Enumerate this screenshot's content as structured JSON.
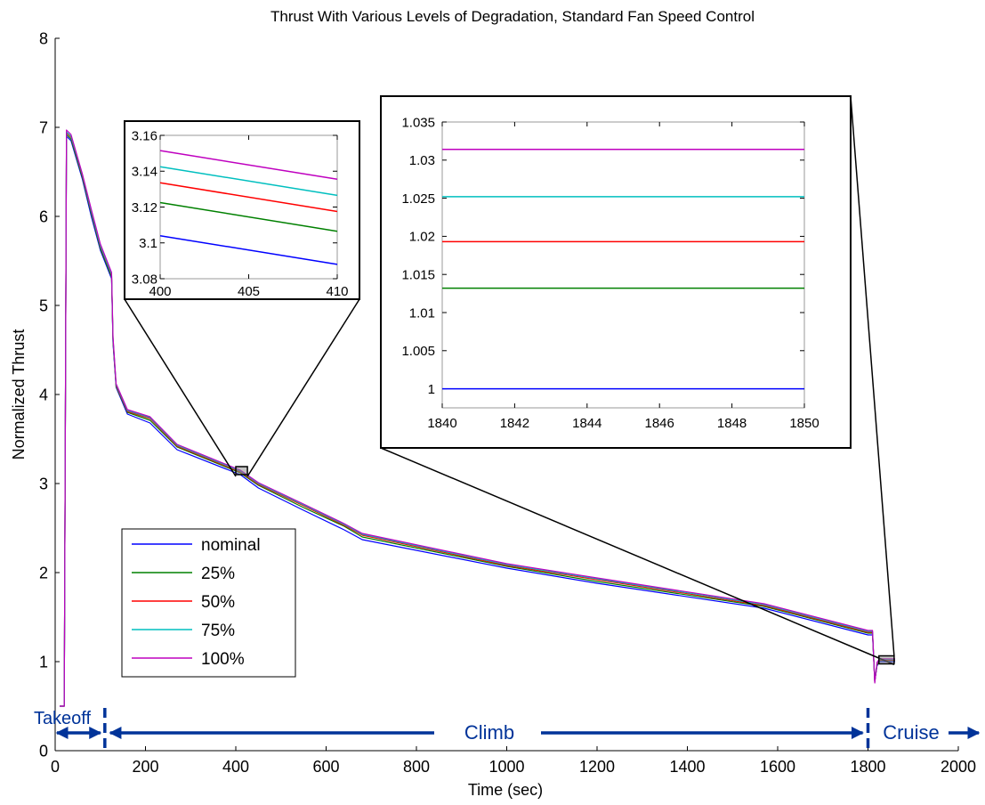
{
  "colors": {
    "nominal": "#0000ff",
    "25%": "#008000",
    "50%": "#ff0000",
    "75%": "#00bfbf",
    "100%": "#bf00bf",
    "phase": "#003399",
    "axis": "#000000"
  },
  "chart_data": [
    {
      "type": "line",
      "title": "Thrust With Various Levels of Degradation, Standard Fan Speed Control",
      "xlabel": "Time (sec)",
      "ylabel": "Normalized Thrust",
      "xlim": [
        0,
        2000
      ],
      "ylim": [
        0,
        8
      ],
      "xticks": [
        "0",
        "200",
        "400",
        "600",
        "800",
        "1000",
        "1200",
        "1400",
        "1600",
        "1800",
        "2000"
      ],
      "yticks": [
        "0",
        "1",
        "2",
        "3",
        "4",
        "5",
        "6",
        "7",
        "8"
      ],
      "legend_position": "lower-left",
      "grid": false,
      "series": [
        {
          "name": "nominal",
          "x": [
            10,
            20,
            25,
            35,
            60,
            80,
            100,
            125,
            128,
            135,
            160,
            210,
            270,
            410,
            450,
            550,
            640,
            680,
            1000,
            1200,
            1570,
            1800,
            1810,
            1815,
            1820,
            1825,
            1830,
            1860
          ],
          "y": [
            0.5,
            0.5,
            6.9,
            6.85,
            6.42,
            6.0,
            5.62,
            5.3,
            4.58,
            4.08,
            3.78,
            3.68,
            3.38,
            3.1,
            2.95,
            2.7,
            2.48,
            2.37,
            2.05,
            1.88,
            1.6,
            1.3,
            1.3,
            0.78,
            0.95,
            1.0,
            1.0,
            1.0
          ]
        },
        {
          "name": "25%",
          "x": [
            10,
            20,
            25,
            35,
            60,
            80,
            100,
            125,
            128,
            135,
            160,
            210,
            270,
            410,
            450,
            550,
            640,
            680,
            1000,
            1200,
            1570,
            1800,
            1810,
            1815,
            1820,
            1825,
            1830,
            1860
          ],
          "y": [
            0.5,
            0.5,
            6.92,
            6.87,
            6.44,
            6.03,
            5.64,
            5.32,
            4.6,
            4.09,
            3.8,
            3.71,
            3.41,
            3.12,
            2.98,
            2.73,
            2.52,
            2.4,
            2.07,
            1.9,
            1.62,
            1.32,
            1.32,
            0.78,
            0.96,
            1.013,
            1.013,
            1.013
          ]
        },
        {
          "name": "50%",
          "x": [
            10,
            20,
            25,
            35,
            60,
            80,
            100,
            125,
            128,
            135,
            160,
            210,
            270,
            410,
            450,
            550,
            640,
            680,
            1000,
            1200,
            1570,
            1800,
            1810,
            1815,
            1820,
            1825,
            1830,
            1860
          ],
          "y": [
            0.5,
            0.5,
            6.94,
            6.89,
            6.46,
            6.05,
            5.66,
            5.34,
            4.62,
            4.1,
            3.81,
            3.73,
            3.42,
            3.13,
            2.99,
            2.75,
            2.53,
            2.42,
            2.08,
            1.92,
            1.63,
            1.33,
            1.33,
            0.77,
            0.97,
            1.019,
            1.019,
            1.019
          ]
        },
        {
          "name": "75%",
          "x": [
            10,
            20,
            25,
            35,
            60,
            80,
            100,
            125,
            128,
            135,
            160,
            210,
            270,
            410,
            450,
            550,
            640,
            680,
            1000,
            1200,
            1570,
            1800,
            1810,
            1815,
            1820,
            1825,
            1830,
            1860
          ],
          "y": [
            0.5,
            0.5,
            6.95,
            6.9,
            6.47,
            6.06,
            5.67,
            5.35,
            4.63,
            4.11,
            3.82,
            3.74,
            3.43,
            3.14,
            3.0,
            2.76,
            2.54,
            2.43,
            2.09,
            1.93,
            1.64,
            1.34,
            1.34,
            0.77,
            0.98,
            1.025,
            1.025,
            1.025
          ]
        },
        {
          "name": "100%",
          "x": [
            10,
            20,
            25,
            35,
            60,
            80,
            100,
            125,
            128,
            135,
            160,
            210,
            270,
            410,
            450,
            550,
            640,
            680,
            1000,
            1200,
            1570,
            1800,
            1810,
            1815,
            1820,
            1825,
            1830,
            1860
          ],
          "y": [
            0.5,
            0.5,
            6.97,
            6.92,
            6.48,
            6.08,
            5.69,
            5.37,
            4.65,
            4.12,
            3.83,
            3.75,
            3.44,
            3.15,
            3.01,
            2.77,
            2.55,
            2.44,
            2.1,
            1.94,
            1.65,
            1.35,
            1.35,
            0.76,
            0.99,
            1.031,
            1.031,
            1.031
          ]
        }
      ],
      "phases": [
        {
          "label": "Takeoff",
          "from": 0,
          "to": 110
        },
        {
          "label": "Climb",
          "from": 110,
          "to": 1800
        },
        {
          "label": "Cruise",
          "from": 1800,
          "to": 2000
        }
      ]
    },
    {
      "type": "line",
      "title": "",
      "xlabel": "",
      "ylabel": "",
      "xlim": [
        400,
        410
      ],
      "ylim": [
        3.08,
        3.16
      ],
      "xticks": [
        "400",
        "405",
        "410"
      ],
      "yticks": [
        "3.08",
        "3.1",
        "3.12",
        "3.14",
        "3.16"
      ],
      "series": [
        {
          "name": "nominal",
          "x": [
            400,
            410
          ],
          "y": [
            3.104,
            3.088
          ]
        },
        {
          "name": "25%",
          "x": [
            400,
            410
          ],
          "y": [
            3.1225,
            3.1065
          ]
        },
        {
          "name": "50%",
          "x": [
            400,
            410
          ],
          "y": [
            3.1335,
            3.1175
          ]
        },
        {
          "name": "75%",
          "x": [
            400,
            410
          ],
          "y": [
            3.1425,
            3.1265
          ]
        },
        {
          "name": "100%",
          "x": [
            400,
            410
          ],
          "y": [
            3.1515,
            3.1355
          ]
        }
      ]
    },
    {
      "type": "line",
      "title": "",
      "xlabel": "",
      "ylabel": "",
      "xlim": [
        1840,
        1850
      ],
      "ylim": [
        0.9975,
        1.035
      ],
      "xticks": [
        "1840",
        "1842",
        "1844",
        "1846",
        "1848",
        "1850"
      ],
      "yticks": [
        "1",
        "1.005",
        "1.01",
        "1.015",
        "1.02",
        "1.025",
        "1.03",
        "1.035"
      ],
      "series": [
        {
          "name": "nominal",
          "x": [
            1840,
            1850
          ],
          "y": [
            1.0,
            1.0
          ]
        },
        {
          "name": "25%",
          "x": [
            1840,
            1850
          ],
          "y": [
            1.0132,
            1.0132
          ]
        },
        {
          "name": "50%",
          "x": [
            1840,
            1850
          ],
          "y": [
            1.0193,
            1.0193
          ]
        },
        {
          "name": "75%",
          "x": [
            1840,
            1850
          ],
          "y": [
            1.0252,
            1.0252
          ]
        },
        {
          "name": "100%",
          "x": [
            1840,
            1850
          ],
          "y": [
            1.0314,
            1.0314
          ]
        }
      ]
    }
  ]
}
